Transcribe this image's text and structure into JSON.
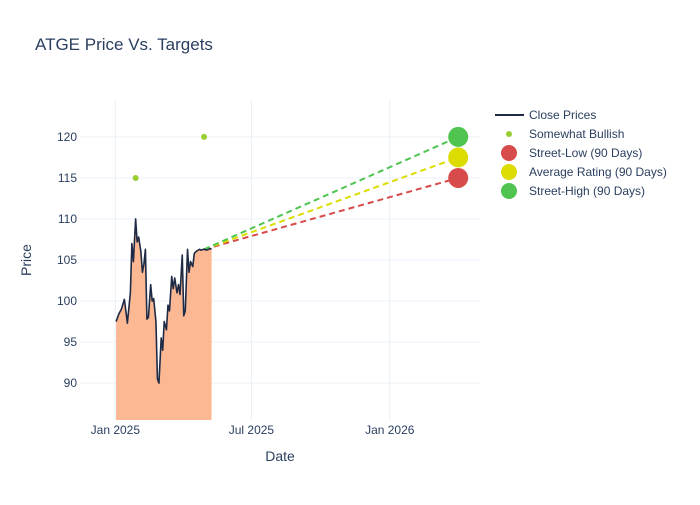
{
  "chart_data": {
    "type": "line",
    "title": "ATGE Price Vs. Targets",
    "xlabel": "Date",
    "ylabel": "Price",
    "xlim": [
      "2024-11-15",
      "2026-05-01"
    ],
    "ylim": [
      85.5,
      124.5
    ],
    "grid": true,
    "legend_position": "top-right",
    "x_ticks": [
      {
        "date": "2025-01-01",
        "label": "Jan 2025"
      },
      {
        "date": "2025-07-01",
        "label": "Jul 2025"
      },
      {
        "date": "2026-01-01",
        "label": "Jan 2026"
      }
    ],
    "y_ticks": [
      90,
      95,
      100,
      105,
      110,
      115,
      120
    ],
    "series": [
      {
        "name": "Close Prices",
        "kind": "line_area",
        "color": "#1f2a44",
        "fill": "#fcb793",
        "x": [
          "2025-01-02",
          "2025-01-06",
          "2025-01-09",
          "2025-01-13",
          "2025-01-15",
          "2025-01-17",
          "2025-01-21",
          "2025-01-23",
          "2025-01-25",
          "2025-01-28",
          "2025-01-30",
          "2025-02-01",
          "2025-02-04",
          "2025-02-06",
          "2025-02-08",
          "2025-02-10",
          "2025-02-12",
          "2025-02-14",
          "2025-02-17",
          "2025-02-19",
          "2025-02-21",
          "2025-02-24",
          "2025-02-26",
          "2025-02-28",
          "2025-03-03",
          "2025-03-05",
          "2025-03-07",
          "2025-03-10",
          "2025-03-12",
          "2025-03-14",
          "2025-03-17",
          "2025-03-19",
          "2025-03-21",
          "2025-03-24",
          "2025-03-26",
          "2025-03-28",
          "2025-03-31",
          "2025-04-02",
          "2025-04-04",
          "2025-04-07",
          "2025-04-09",
          "2025-04-11",
          "2025-04-14",
          "2025-04-16",
          "2025-04-18",
          "2025-04-21",
          "2025-04-23",
          "2025-04-25",
          "2025-04-28",
          "2025-04-30",
          "2025-05-02",
          "2025-05-05",
          "2025-05-07",
          "2025-05-09"
        ],
        "y": [
          97.5,
          98.5,
          99.0,
          100.2,
          98.8,
          97.3,
          101.0,
          107.0,
          104.8,
          110.0,
          107.2,
          107.8,
          106.0,
          103.5,
          104.5,
          106.3,
          97.8,
          98.0,
          102.0,
          100.0,
          100.3,
          97.5,
          90.5,
          90.0,
          95.5,
          94.0,
          97.5,
          96.5,
          99.5,
          98.8,
          103.0,
          101.5,
          102.8,
          101.0,
          102.0,
          100.8,
          105.6,
          98.2,
          98.8,
          106.3,
          103.5,
          104.8,
          104.2,
          105.8,
          106.0,
          106.2,
          106.3,
          106.2,
          106.3,
          106.3,
          106.2,
          106.3,
          106.4,
          106.3
        ]
      },
      {
        "name": "Somewhat Bullish",
        "kind": "markers",
        "color": "#9acd32",
        "x": [
          "2025-01-28",
          "2025-04-29"
        ],
        "y": [
          115,
          120
        ]
      },
      {
        "name": "Street-Low (90 Days)",
        "kind": "target",
        "color": "#d84b4b",
        "x": [
          "2025-04-29",
          "2026-04-02"
        ],
        "y": [
          106.3,
          115
        ]
      },
      {
        "name": "Average Rating (90 Days)",
        "kind": "target",
        "color": "#dcdc00",
        "x": [
          "2025-04-29",
          "2026-04-02"
        ],
        "y": [
          106.3,
          117.5
        ]
      },
      {
        "name": "Street-High (90 Days)",
        "kind": "target",
        "color": "#4fc44f",
        "x": [
          "2025-04-29",
          "2026-04-02"
        ],
        "y": [
          106.3,
          120
        ]
      }
    ]
  }
}
